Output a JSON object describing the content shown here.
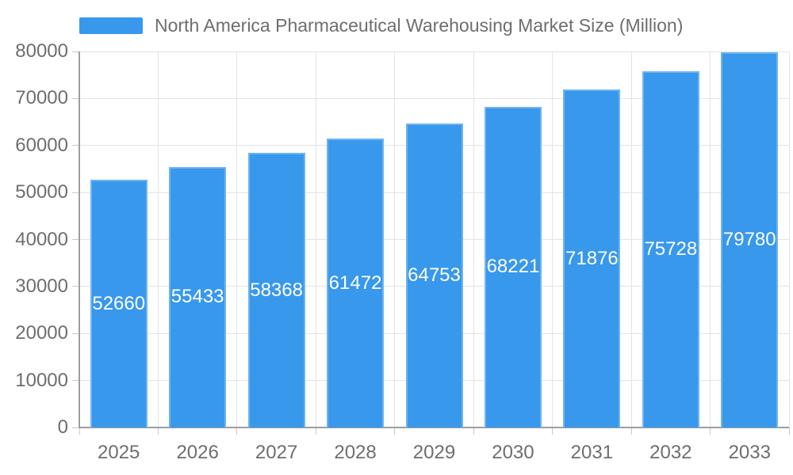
{
  "chart_data": {
    "type": "bar",
    "title": "North America Pharmaceutical Warehousing Market Size (Million)",
    "categories": [
      "2025",
      "2026",
      "2027",
      "2028",
      "2029",
      "2030",
      "2031",
      "2032",
      "2033"
    ],
    "values": [
      52660,
      55433,
      58368,
      61472,
      64753,
      68221,
      71876,
      75728,
      79780
    ],
    "value_labels": [
      "52660",
      "55433",
      "58368",
      "61472",
      "64753",
      "68221",
      "71876",
      "75728",
      "79780"
    ],
    "ylim": [
      0,
      80000
    ],
    "ytick_step": 10000,
    "ytick_labels": [
      "0",
      "10000",
      "20000",
      "30000",
      "40000",
      "50000",
      "60000",
      "70000",
      "80000"
    ],
    "xlabel": "",
    "ylabel": "",
    "grid": true,
    "legend_position": "top-left",
    "colors": {
      "bar_fill": "#3898EC",
      "bar_border": "#6FB4F2",
      "value_label_text": "#FFFFFF",
      "text": "#6E6E6E",
      "axis_line": "#9E9E9E",
      "tick": "#C9C9C9",
      "grid_line": "#E4E4E4",
      "background": "#FFFFFF"
    }
  }
}
